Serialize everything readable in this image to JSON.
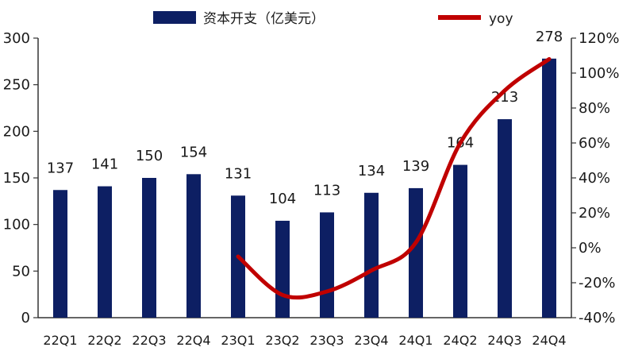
{
  "chart_data": {
    "type": "bar",
    "categories": [
      "22Q1",
      "22Q2",
      "22Q3",
      "22Q4",
      "23Q1",
      "23Q2",
      "23Q3",
      "23Q4",
      "24Q1",
      "24Q2",
      "24Q3",
      "24Q4"
    ],
    "series": [
      {
        "name": "资本开支（亿美元）",
        "type": "bar",
        "axis": "left",
        "color": "#0d1f63",
        "values": [
          137,
          141,
          150,
          154,
          131,
          104,
          113,
          134,
          139,
          164,
          213,
          278
        ],
        "labels": [
          "137",
          "141",
          "150",
          "154",
          "131",
          "104",
          "113",
          "134",
          "139",
          "164",
          "213",
          "278"
        ]
      },
      {
        "name": "yoy",
        "type": "line",
        "axis": "right",
        "color": "#c00000",
        "values": [
          null,
          null,
          null,
          null,
          -5,
          -27,
          -25,
          -13,
          3,
          60,
          90,
          108
        ]
      }
    ],
    "y_left": {
      "range": [
        0,
        300
      ],
      "ticks": [
        "0",
        "50",
        "100",
        "150",
        "200",
        "250",
        "300"
      ]
    },
    "y_right": {
      "range": [
        -40,
        120
      ],
      "ticks": [
        "-40%",
        "-20%",
        "0%",
        "20%",
        "40%",
        "60%",
        "80%",
        "100%",
        "120%"
      ]
    },
    "grid": false,
    "legend": {
      "placement": "top"
    }
  }
}
